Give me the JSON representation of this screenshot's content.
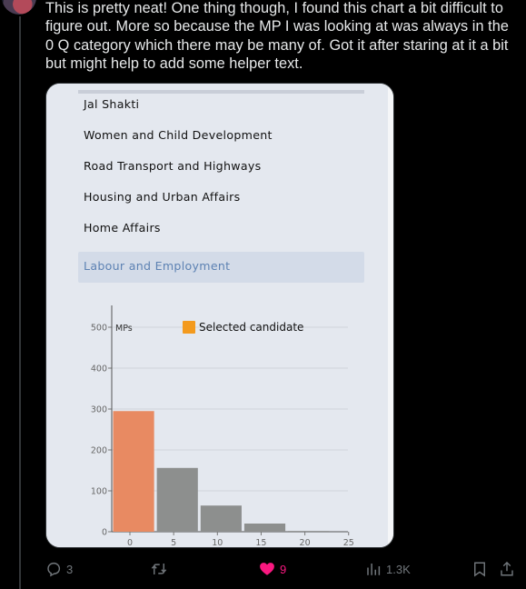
{
  "tweet": {
    "text": "This is pretty neat! One thing though, I found this chart a bit difficult to figure out. More so because the MP I was looking at was always in the 0 Q category which there may be many of. Got it after staring at it a bit but might help to add some helper text."
  },
  "media": {
    "menu_items": [
      "Jal Shakti",
      "Women and Child Development",
      "Road Transport and Highways",
      "Housing and Urban Affairs",
      "Home Affairs",
      "Labour and Employment"
    ],
    "selected_index": 5
  },
  "chart_data": {
    "type": "bar",
    "ylabel": "MPs",
    "legend": {
      "label": "Selected candidate",
      "color": "#f39a1e",
      "placement": "top"
    },
    "x": [
      0,
      5,
      10,
      15,
      20
    ],
    "bin_width": 5,
    "values": [
      295,
      156,
      64,
      20,
      2
    ],
    "highlighted_index": 0,
    "bar_color": "#8d8f8e",
    "highlight_color": "#e88a62",
    "x_ticks": [
      0,
      5,
      10,
      15,
      20,
      25
    ],
    "y_ticks": [
      0,
      100,
      200,
      300,
      400,
      500
    ],
    "xlim": [
      0,
      27
    ],
    "ylim": [
      0,
      500
    ],
    "grid": true
  },
  "actions": {
    "reply_count": "3",
    "retweet_count": "",
    "like_count": "9",
    "views_count": "1.3K"
  },
  "colors": {
    "like_active": "#f91880",
    "muted": "#71767b",
    "selected_menu_text": "#5d82b3"
  }
}
